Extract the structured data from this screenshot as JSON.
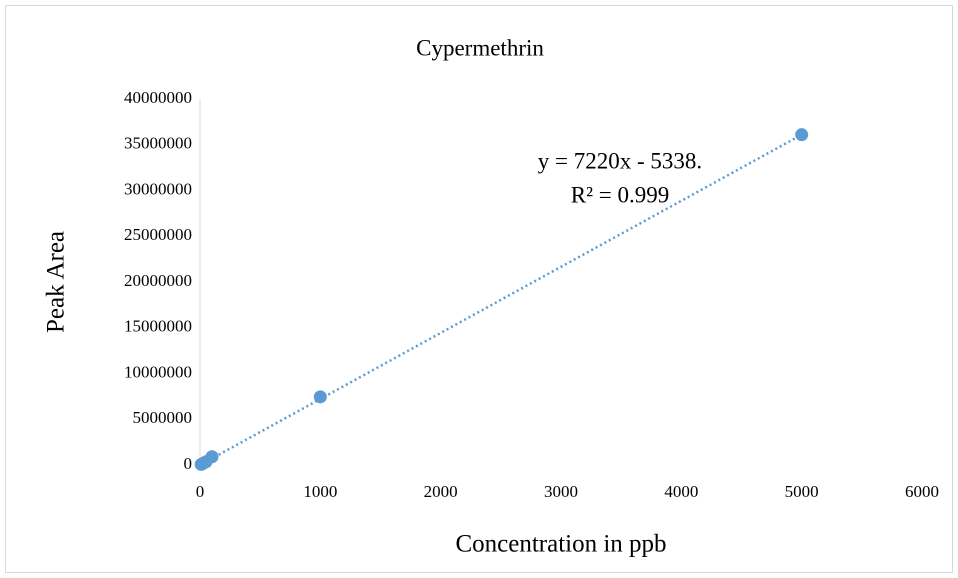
{
  "chart_data": {
    "type": "scatter",
    "title": "Cypermethrin",
    "x_label": "Concentration in ppb",
    "y_label": "Peak Area",
    "series": [
      {
        "name": "Cypermethrin",
        "color": "#5b9bd5",
        "x": [
          10,
          25,
          50,
          100,
          1000,
          5000
        ],
        "values": [
          70000,
          180000,
          350000,
          900000,
          7450000,
          36100000
        ]
      }
    ],
    "trendline": {
      "slope": 7220,
      "intercept": -5338,
      "color": "#5b9bd5",
      "equation": "y = 7220x - 5338.",
      "r2": "R² = 0.999"
    },
    "xlim": [
      0,
      6000
    ],
    "xticks": [
      0,
      1000,
      2000,
      3000,
      4000,
      5000,
      6000
    ],
    "ylim": [
      0,
      40000000
    ],
    "yticks": [
      0,
      5000000,
      10000000,
      15000000,
      20000000,
      25000000,
      30000000,
      35000000,
      40000000
    ],
    "grid": false
  }
}
